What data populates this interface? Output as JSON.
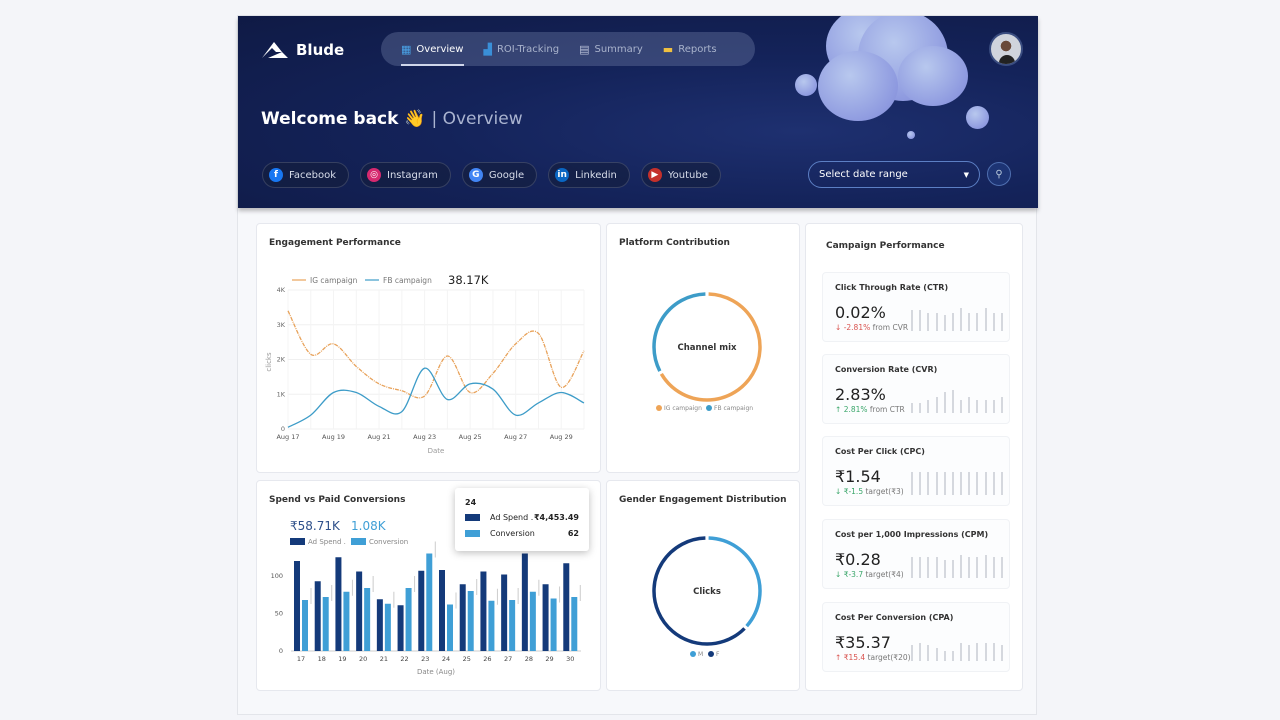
{
  "header": {
    "brand": "Blude",
    "nav": [
      {
        "label": "Overview",
        "icon": "grid-icon",
        "active": true
      },
      {
        "label": "ROI-Tracking",
        "icon": "bar-chart-icon"
      },
      {
        "label": "Summary",
        "icon": "document-icon"
      },
      {
        "label": "Reports",
        "icon": "folder-icon"
      }
    ],
    "welcome": "Welcome back",
    "wave": "👋",
    "welcome_sub": "| Overview",
    "platforms": [
      {
        "label": "Facebook",
        "icon": "facebook-icon",
        "color": "#1877f2",
        "glyph": "f"
      },
      {
        "label": "Instagram",
        "icon": "instagram-icon",
        "color": "#d6296f",
        "glyph": "◎"
      },
      {
        "label": "Google",
        "icon": "google-icon",
        "color": "#4285f4",
        "glyph": "G"
      },
      {
        "label": "Linkedin",
        "icon": "linkedin-icon",
        "color": "#0a66c2",
        "glyph": "in"
      },
      {
        "label": "Youtube",
        "icon": "youtube-icon",
        "color": "#c4302b",
        "glyph": "▶"
      }
    ],
    "date_range_placeholder": "Select date range"
  },
  "engagement": {
    "title": "Engagement Performance",
    "total": "38.17K",
    "chart_data": {
      "type": "line",
      "x": [
        "Aug 17",
        "Aug 18",
        "Aug 19",
        "Aug 20",
        "Aug 21",
        "Aug 22",
        "Aug 23",
        "Aug 24",
        "Aug 25",
        "Aug 26",
        "Aug 27",
        "Aug 28",
        "Aug 29",
        "Aug 30"
      ],
      "xticks": [
        "Aug 17",
        "Aug 19",
        "Aug 21",
        "Aug 23",
        "Aug 25",
        "Aug 27",
        "Aug 29"
      ],
      "yticks": [
        "0",
        "1K",
        "2K",
        "3K",
        "4K"
      ],
      "ylim": [
        0,
        4000
      ],
      "xlabel": "Date",
      "ylabel": "clicks",
      "grid": true,
      "legend": "top-left",
      "series": [
        {
          "name": "IG campaign",
          "color": "#e8a25a",
          "values": [
            3400,
            2150,
            2450,
            1800,
            1300,
            1100,
            950,
            2100,
            1050,
            1600,
            2450,
            2750,
            1200,
            2250
          ]
        },
        {
          "name": "FB campaign",
          "color": "#3d9cc8",
          "values": [
            50,
            400,
            1050,
            1050,
            650,
            500,
            1750,
            850,
            1300,
            1150,
            400,
            750,
            1050,
            750
          ]
        }
      ]
    }
  },
  "platform": {
    "title": "Platform Contribution",
    "center": "Channel mix",
    "chart_data": {
      "type": "pie",
      "donut": true,
      "labels": [
        "IG campaign",
        "FB campaign"
      ],
      "values": [
        67,
        33
      ],
      "colors": [
        "#eea457",
        "#3d9cc8"
      ]
    }
  },
  "spend": {
    "title": "Spend vs Paid Conversions",
    "total_spend": "₹58.71K",
    "total_conv": "1.08K",
    "chart_data": {
      "type": "bar",
      "categories": [
        "17",
        "18",
        "19",
        "20",
        "21",
        "22",
        "23",
        "24",
        "25",
        "26",
        "27",
        "28",
        "29",
        "30"
      ],
      "xlabel": "Date (Aug)",
      "yticks": [
        "0",
        "50",
        "100"
      ],
      "ylim": [
        0,
        130
      ],
      "series": [
        {
          "name": "Ad Spend .",
          "color": "#143a7a",
          "values": [
            120,
            93,
            125,
            106,
            69,
            61,
            107,
            108,
            89,
            106,
            102,
            130,
            89,
            117
          ]
        },
        {
          "name": "Conversion",
          "color": "#3f9fd6",
          "values": [
            68,
            72,
            79,
            84,
            63,
            84,
            130,
            62,
            80,
            67,
            68,
            79,
            70,
            72
          ]
        }
      ]
    },
    "tooltip": {
      "title": "24",
      "rows": [
        {
          "label": "Ad Spend .",
          "value": "₹4,453.49",
          "color": "#143a7a"
        },
        {
          "label": "Conversion",
          "value": "62",
          "color": "#3f9fd6"
        }
      ]
    }
  },
  "gender": {
    "title": "Gender Engagement Distribution",
    "center": "Clicks",
    "chart_data": {
      "type": "pie",
      "donut": true,
      "labels": [
        "M",
        "F"
      ],
      "values": [
        37,
        63
      ],
      "colors": [
        "#3f9fd6",
        "#143a7a"
      ]
    }
  },
  "campaign": {
    "title": "Campaign Performance",
    "kpis": [
      {
        "title": "Click Through Rate (CTR)",
        "value": "0.02%",
        "delta": "-2.81%",
        "note": "from CVR",
        "trend": "down",
        "color": "#d9534f",
        "spark": [
          8,
          8,
          7,
          7,
          6,
          7,
          9,
          7,
          7,
          9,
          7,
          7
        ]
      },
      {
        "title": "Conversion Rate (CVR)",
        "value": "2.83%",
        "delta": "2.81%",
        "note": "from CTR",
        "trend": "up",
        "color": "#3aa66a",
        "spark": [
          4,
          4,
          5,
          6,
          8,
          9,
          5,
          6,
          5,
          5,
          5,
          6
        ]
      },
      {
        "title": "Cost Per Click (CPC)",
        "value": "₹1.54",
        "delta": "₹-1.5",
        "note": "target(₹3)",
        "trend": "down",
        "color": "#3aa66a",
        "spark": [
          9,
          9,
          9,
          9,
          9,
          9,
          9,
          9,
          9,
          9,
          9,
          9
        ]
      },
      {
        "title": "Cost per 1,000 Impressions (CPM)",
        "value": "₹0.28",
        "delta": "₹-3.7",
        "note": "target(₹4)",
        "trend": "down",
        "color": "#3aa66a",
        "spark": [
          8,
          8,
          8,
          8,
          7,
          7,
          9,
          8,
          8,
          9,
          8,
          8
        ]
      },
      {
        "title": "Cost Per Conversion (CPA)",
        "value": "₹35.37",
        "delta": "₹15.4",
        "note": "target(₹20)",
        "trend": "up",
        "color": "#d9534f",
        "spark": [
          6,
          7,
          6,
          5,
          4,
          4,
          7,
          6,
          7,
          7,
          7,
          6
        ]
      }
    ]
  }
}
